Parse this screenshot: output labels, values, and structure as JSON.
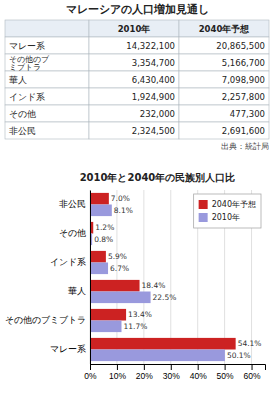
{
  "chart_data": [
    {
      "type": "table",
      "title": "マレーシアの人口増加見通し",
      "categories": [
        "マレー系",
        "その他のブ\nミブトラ",
        "華人",
        "インド系",
        "その他",
        "非公民"
      ],
      "series": [
        {
          "name": "2010年",
          "values": [
            14322100,
            3354700,
            6430400,
            1924900,
            232000,
            2324500
          ],
          "value_labels": [
            "14,322,100",
            "3,354,700",
            "6,430,400",
            "1,924,900",
            "232,000",
            "2,324,500"
          ]
        },
        {
          "name": "2040年予想",
          "values": [
            20865500,
            5166700,
            7098900,
            2257800,
            477300,
            2691600
          ],
          "value_labels": [
            "20,865,500",
            "5,166,700",
            "7,098,900",
            "2,257,800",
            "477,300",
            "2,691,600"
          ]
        }
      ],
      "data_labels": true,
      "annotations": [
        "出典：統計局"
      ]
    },
    {
      "type": "bar",
      "orientation": "horizontal",
      "title": "2010年と2040年の民族別人口比",
      "categories": [
        "非公民",
        "その他",
        "インド系",
        "華人",
        "その他のブミブトラ",
        "マレー系"
      ],
      "series": [
        {
          "name": "2040年予想",
          "color": "#cc2222",
          "values": [
            7.0,
            1.2,
            5.9,
            18.4,
            13.4,
            54.1
          ],
          "value_labels": [
            "7.0%",
            "1.2%",
            "5.9%",
            "18.4%",
            "13.4%",
            "54.1%"
          ]
        },
        {
          "name": "2010年",
          "color": "#9999dd",
          "values": [
            8.1,
            0.8,
            6.7,
            22.5,
            11.7,
            50.1
          ],
          "value_labels": [
            "8.1%",
            "0.8%",
            "6.7%",
            "22.5%",
            "11.7%",
            "50.1%"
          ]
        }
      ],
      "xlim": [
        0,
        65
      ],
      "xticks": [
        {
          "value": 0,
          "label": "0%"
        },
        {
          "value": 10,
          "label": "10%"
        },
        {
          "value": 20,
          "label": "20%"
        },
        {
          "value": 30,
          "label": "30%"
        },
        {
          "value": 40,
          "label": "40%"
        },
        {
          "value": 50,
          "label": "50%"
        },
        {
          "value": 60,
          "label": "60%"
        }
      ],
      "grid": true,
      "legend": "upper right",
      "data_labels": true
    }
  ]
}
